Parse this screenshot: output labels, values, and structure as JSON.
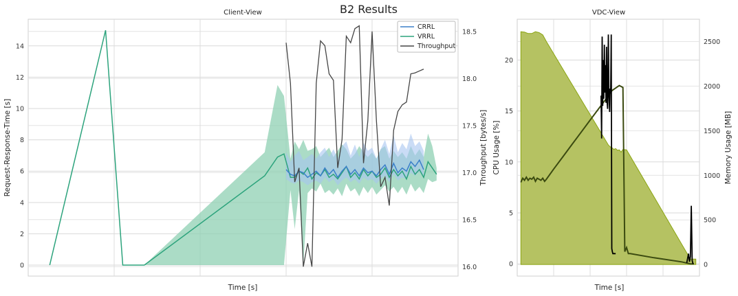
{
  "suptitle": "B2 Results",
  "chart_data": [
    {
      "type": "line",
      "title": "Client-View",
      "xlabel": "Time [s]",
      "ylabel": "Request-Response-Time [s]",
      "ylabel_right": "Throughput [bytes/s]",
      "ylim": [
        -0.7,
        15.7
      ],
      "ylim_right": [
        15.9,
        18.63
      ],
      "xlim": [
        0,
        100
      ],
      "yticks": [
        0,
        2,
        4,
        6,
        8,
        10,
        12,
        14
      ],
      "yticks_right": [
        16.0,
        16.5,
        17.0,
        17.5,
        18.0,
        18.5
      ],
      "ytick_labels_right": [
        "16.0",
        "16.5",
        "17.0",
        "17.5",
        "18.0",
        "18.5"
      ],
      "legend": {
        "position": "top-right",
        "entries": [
          "CRRL",
          "VRRL",
          "Throughput"
        ]
      },
      "colors": {
        "CRRL": "#3a7fc9",
        "VRRL": "#2ca37c",
        "Throughput": "#444444",
        "crrl_band": "#a6c4f0",
        "vrrl_band": "#8fd0b3"
      },
      "grid": true,
      "series": [
        {
          "name": "VRRL",
          "axis": "left",
          "x": [
            5,
            18,
            22,
            27,
            55,
            58,
            59.5,
            61,
            62,
            63,
            64,
            65,
            66,
            67,
            68,
            69,
            70,
            71,
            72,
            73,
            74,
            75,
            76,
            77,
            78,
            79,
            80,
            81,
            82,
            83,
            84,
            85,
            86,
            87,
            88,
            89,
            90,
            91,
            92,
            93,
            94,
            95
          ],
          "y": [
            0,
            15,
            0,
            0,
            5.7,
            6.9,
            7.1,
            5.6,
            5.6,
            6.0,
            5.8,
            6.2,
            5.5,
            5.9,
            5.7,
            6.1,
            5.6,
            5.8,
            5.5,
            5.9,
            6.3,
            5.6,
            5.9,
            5.5,
            6.1,
            5.7,
            6.0,
            5.6,
            5.8,
            6.2,
            5.6,
            6.1,
            5.7,
            6.0,
            5.5,
            6.3,
            5.8,
            6.1,
            5.6,
            6.6,
            6.2,
            5.8
          ],
          "band_lower": [
            0,
            15,
            0,
            0,
            0,
            0,
            0,
            4.8,
            2.3,
            4.8,
            0,
            4.6,
            4.9,
            4.7,
            5.2,
            4.6,
            4.8,
            4.5,
            4.9,
            4.4,
            5.2,
            4.7,
            4.9,
            4.4,
            5.0,
            4.6,
            5.0,
            4.5,
            4.8,
            5.1,
            4.7,
            5.0,
            4.6,
            5.0,
            4.5,
            5.2,
            4.7,
            5.0,
            4.6,
            5.5,
            5.3,
            5.4
          ],
          "band_upper": [
            0,
            15,
            0,
            0,
            7.2,
            11.5,
            10.8,
            6.8,
            7.9,
            7.4,
            8.0,
            7.3,
            7.4,
            7.6,
            6.9,
            7.2,
            7.5,
            6.9,
            7.3,
            7.7,
            7.4,
            6.8,
            7.1,
            7.6,
            7.2,
            6.9,
            7.2,
            6.8,
            7.4,
            7.6,
            6.8,
            7.3,
            6.9,
            7.2,
            6.8,
            7.6,
            7.0,
            7.4,
            6.9,
            8.4,
            7.6,
            6.2
          ]
        },
        {
          "name": "CRRL",
          "axis": "left",
          "x": [
            60,
            61,
            62,
            63,
            64,
            65,
            66,
            67,
            68,
            69,
            70,
            71,
            72,
            73,
            74,
            75,
            76,
            77,
            78,
            79,
            80,
            81,
            82,
            83,
            84,
            85,
            86,
            87,
            88,
            89,
            90,
            91,
            92
          ],
          "y": [
            6.1,
            5.8,
            5.7,
            6.0,
            5.9,
            5.6,
            5.8,
            6.0,
            5.7,
            6.2,
            5.8,
            6.1,
            5.6,
            6.0,
            6.3,
            5.8,
            6.1,
            5.7,
            6.2,
            5.9,
            6.0,
            5.7,
            6.1,
            6.4,
            5.8,
            6.5,
            5.9,
            6.2,
            6.0,
            6.6,
            6.3,
            6.7,
            6.1
          ],
          "band_lower": [
            5.5,
            5.3,
            5.2,
            5.4,
            5.3,
            5.1,
            5.3,
            5.4,
            5.2,
            5.6,
            5.3,
            5.5,
            5.1,
            5.4,
            5.6,
            5.3,
            5.5,
            5.2,
            5.6,
            5.4,
            5.5,
            5.2,
            5.5,
            5.7,
            5.3,
            5.8,
            5.4,
            5.6,
            5.5,
            5.9,
            5.7,
            6.0,
            5.6
          ],
          "band_upper": [
            7.2,
            6.6,
            7.0,
            7.3,
            6.7,
            6.9,
            7.1,
            6.8,
            7.2,
            7.5,
            6.9,
            7.4,
            6.8,
            7.6,
            7.9,
            7.0,
            7.7,
            6.9,
            7.8,
            7.3,
            7.5,
            6.8,
            7.4,
            8.0,
            7.1,
            8.3,
            7.2,
            7.8,
            7.4,
            8.4,
            7.6,
            7.9,
            7.3
          ]
        },
        {
          "name": "Throughput",
          "axis": "right",
          "x": [
            60,
            61,
            62,
            63,
            64,
            65,
            66,
            67,
            68,
            69,
            70,
            71,
            72,
            73,
            74,
            75,
            76,
            77,
            78,
            79,
            80,
            81,
            82,
            83,
            84,
            85,
            86,
            87,
            88,
            89,
            90,
            91,
            92
          ],
          "y": [
            18.38,
            17.95,
            16.9,
            17.05,
            16.0,
            16.25,
            16.0,
            17.95,
            18.4,
            18.35,
            18.05,
            17.98,
            17.05,
            17.35,
            18.45,
            18.38,
            18.53,
            18.56,
            17.1,
            17.55,
            18.5,
            17.55,
            16.85,
            16.95,
            16.65,
            17.45,
            17.65,
            17.72,
            17.75,
            18.05,
            18.06,
            18.08,
            18.1
          ]
        }
      ]
    },
    {
      "type": "area",
      "title": "VDC-View",
      "xlabel": "Time [s]",
      "ylabel": "CPU Usage [%]",
      "ylabel_right": "Memory Usage [MB]",
      "ylim": [
        -1.2,
        24
      ],
      "ylim_right": [
        -130,
        2750
      ],
      "xlim": [
        0,
        100
      ],
      "yticks": [
        0,
        5,
        10,
        15,
        20
      ],
      "yticks_right": [
        0,
        500,
        1000,
        1500,
        2000,
        2500
      ],
      "colors": {
        "cpu": "#3b4a10",
        "memory_fill": "#b5c262",
        "memory_edge": "#8aa410",
        "spikes": "#000000"
      },
      "grid": true,
      "series": [
        {
          "name": "Memory",
          "axis": "right",
          "x": [
            2,
            4,
            6,
            8,
            10,
            12,
            14,
            16,
            50,
            51,
            52,
            53,
            54,
            55,
            56,
            57,
            58,
            60,
            95,
            97,
            98
          ],
          "y": [
            2610,
            2605,
            2590,
            2590,
            2610,
            2600,
            2575,
            2500,
            1340,
            1320,
            1310,
            1290,
            1300,
            1280,
            1285,
            1260,
            1290,
            1285,
            60,
            60,
            60
          ]
        },
        {
          "name": "CPU",
          "axis": "left",
          "x": [
            2,
            3,
            4,
            5,
            6,
            7,
            8,
            9,
            10,
            11,
            12,
            13,
            14,
            15,
            16,
            20,
            25,
            30,
            35,
            40,
            45,
            48,
            52,
            56,
            58,
            59,
            60,
            61,
            62,
            75,
            90,
            95,
            96,
            97
          ],
          "y": [
            8.0,
            8.4,
            8.2,
            8.5,
            8.2,
            8.4,
            8.3,
            8.5,
            8.1,
            8.4,
            8.3,
            8.2,
            8.4,
            8.1,
            8.3,
            9.3,
            10.5,
            11.7,
            12.9,
            14.1,
            15.3,
            16.0,
            17.0,
            17.5,
            17.3,
            1.2,
            1.6,
            1.0,
            1.0,
            0.6,
            0.2,
            0.0,
            0.0,
            0.0
          ]
        },
        {
          "name": "CPU spikes",
          "axis": "left",
          "x": [
            46,
            46.3,
            46.6,
            46.9,
            47.2,
            47.5,
            47.8,
            48.1,
            48.4,
            48.7,
            49.0,
            49.3,
            49.6,
            50.0,
            50.3,
            50.7,
            51.0,
            51.3,
            51.6,
            51.9,
            52.2,
            52.5,
            52.8,
            53.1,
            53.4,
            53.7,
            54.0
          ],
          "y": [
            16.5,
            12.3,
            22.3,
            15.5,
            20.0,
            16.2,
            21.5,
            16.8,
            19.5,
            15.8,
            21.3,
            16.0,
            15.2,
            22.5,
            16.5,
            14.9,
            17.2,
            17.0,
            22.5,
            1.5,
            1.2,
            1.0,
            1.0,
            1.0,
            1.0,
            1.0,
            1.0
          ]
        },
        {
          "name": "CPU spikes end",
          "axis": "left",
          "x": [
            93,
            94,
            94.5,
            95,
            95.5,
            96,
            96.5
          ],
          "y": [
            0.1,
            1.0,
            0.2,
            0.7,
            5.7,
            0.3,
            0.0
          ]
        }
      ]
    }
  ]
}
